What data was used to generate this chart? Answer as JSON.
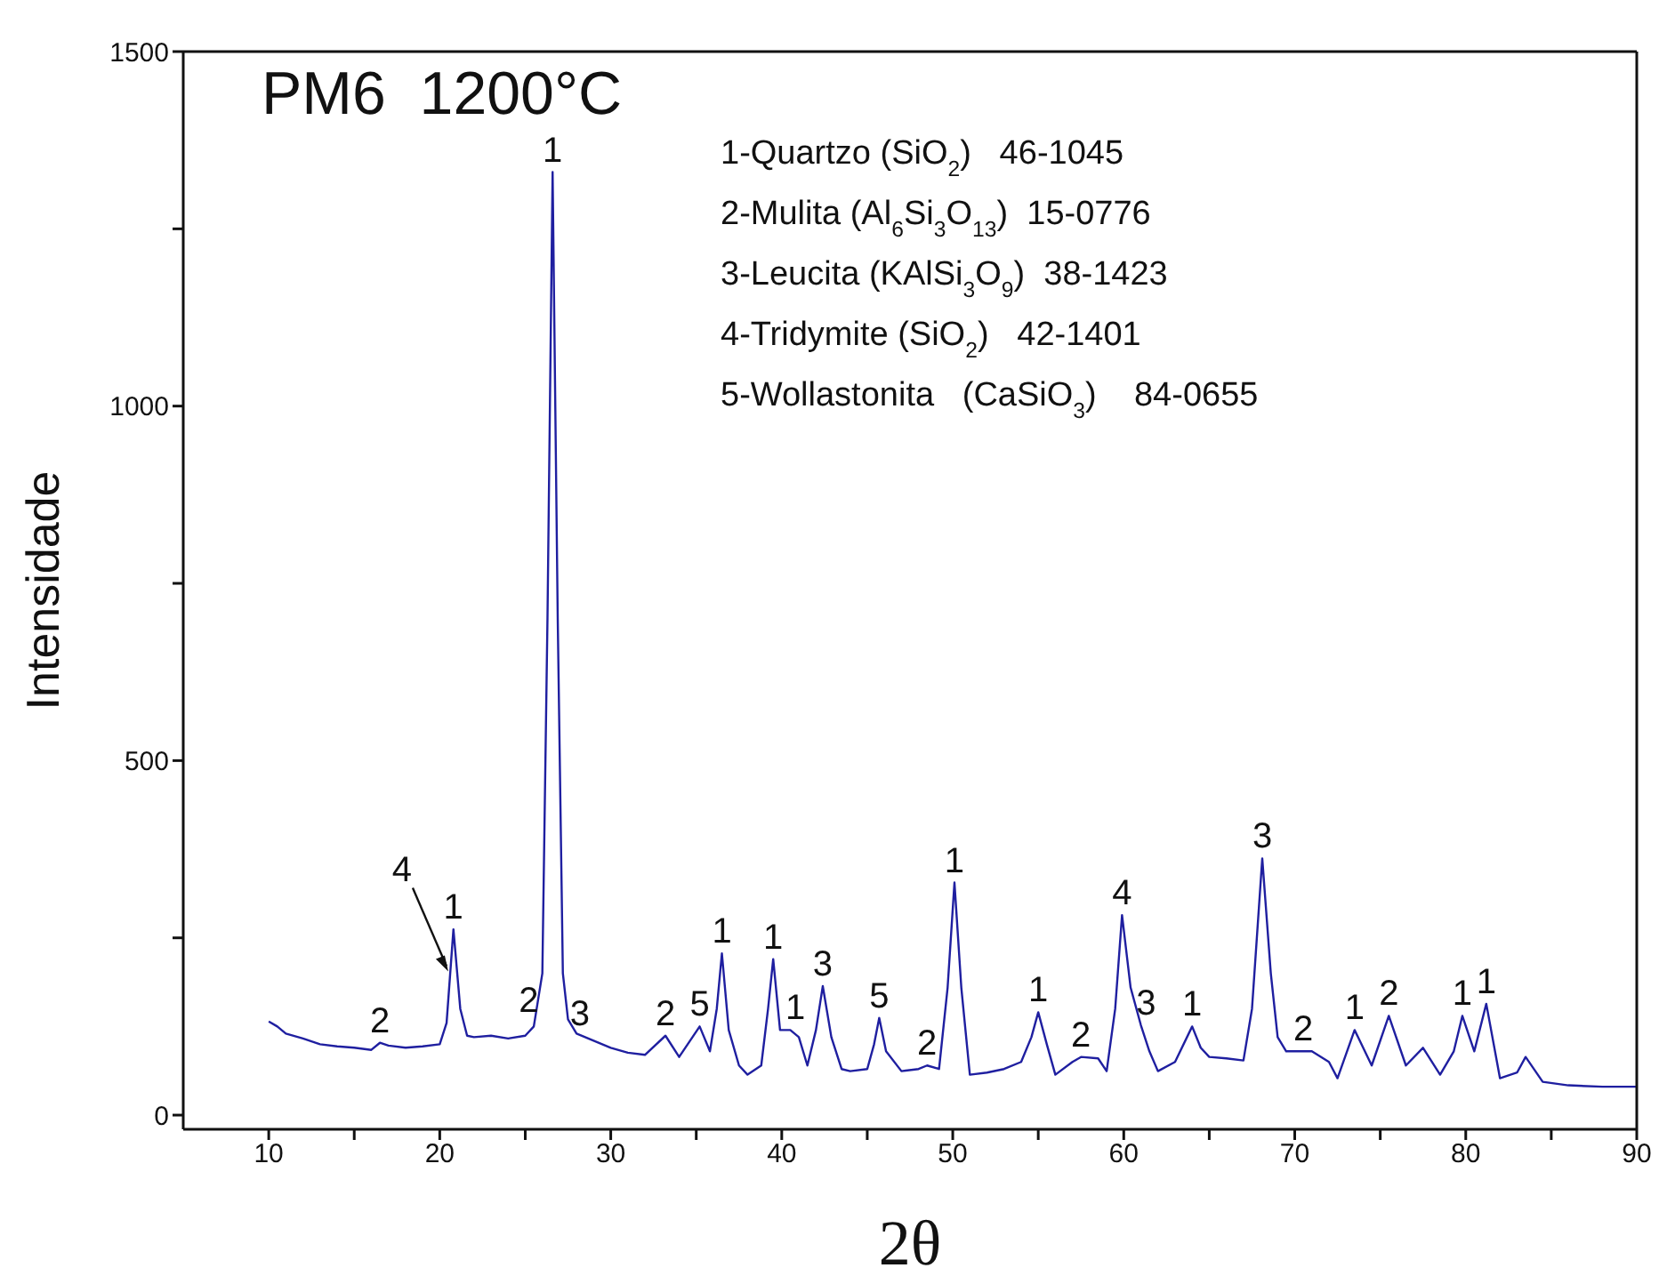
{
  "chart_data": {
    "type": "line",
    "title": "PM6  1200°C",
    "xlabel": "2θ",
    "ylabel": "Intensidade",
    "xlim": [
      5,
      90
    ],
    "xticks": [
      10,
      {
        "value": 15,
        "label": null
      },
      20,
      {
        "value": 25,
        "label": null
      },
      30,
      {
        "value": 35,
        "label": null
      },
      40,
      {
        "value": 45,
        "label": null
      },
      50,
      {
        "value": 55,
        "label": null
      },
      60,
      {
        "value": 65,
        "label": null
      },
      70,
      {
        "value": 75,
        "label": null
      },
      80,
      {
        "value": 85,
        "label": null
      },
      90
    ],
    "ylim": [
      -20,
      1500
    ],
    "yticks": [
      0,
      {
        "value": 250,
        "label": null
      },
      500,
      {
        "value": 750,
        "label": null
      },
      1000,
      {
        "value": 1250,
        "label": null
      },
      1500
    ],
    "marker": "none",
    "series": [
      {
        "color": "#1f1fa0",
        "x": [
          10,
          10.5,
          11,
          12,
          13,
          14,
          15,
          16,
          16.5,
          17,
          18,
          19,
          20,
          20.4,
          20.8,
          21.2,
          21.6,
          22,
          23,
          24,
          25,
          25.5,
          26,
          26.3,
          26.6,
          26.9,
          27.2,
          27.5,
          28,
          29,
          30,
          31,
          32,
          33.2,
          34,
          35.2,
          35.8,
          36.2,
          36.5,
          36.9,
          37.5,
          38,
          38.8,
          39.2,
          39.5,
          39.9,
          40.5,
          41,
          41.5,
          42,
          42.4,
          42.9,
          43.5,
          44,
          45,
          45.4,
          45.7,
          46.1,
          47,
          48,
          48.5,
          49.2,
          49.7,
          50.1,
          50.5,
          51,
          52,
          53,
          54,
          54.6,
          55,
          55.5,
          56,
          57,
          57.5,
          58.5,
          59,
          59.5,
          59.9,
          60.4,
          61,
          61.5,
          62,
          63,
          64,
          64.5,
          65,
          66,
          67,
          67.5,
          68.1,
          68.6,
          69,
          69.5,
          71,
          72,
          72.5,
          73.5,
          74.5,
          75.5,
          76.5,
          77.5,
          78.5,
          79.3,
          79.8,
          80.5,
          81.2,
          82,
          83,
          83.5,
          84.5,
          86,
          88,
          90
        ],
        "values": [
          132,
          125,
          115,
          108,
          100,
          97,
          95,
          92,
          102,
          98,
          95,
          97,
          100,
          130,
          262,
          150,
          112,
          110,
          112,
          108,
          112,
          125,
          200,
          700,
          1330,
          700,
          200,
          135,
          115,
          105,
          95,
          88,
          85,
          112,
          82,
          125,
          90,
          150,
          228,
          120,
          70,
          57,
          70,
          150,
          220,
          120,
          120,
          110,
          70,
          120,
          182,
          110,
          65,
          62,
          65,
          100,
          137,
          90,
          62,
          65,
          70,
          65,
          180,
          328,
          180,
          57,
          60,
          65,
          75,
          110,
          145,
          100,
          57,
          75,
          82,
          80,
          62,
          150,
          282,
          180,
          127,
          90,
          62,
          75,
          125,
          95,
          82,
          80,
          77,
          150,
          362,
          200,
          110,
          90,
          90,
          75,
          52,
          120,
          70,
          140,
          70,
          95,
          57,
          90,
          140,
          90,
          157,
          52,
          60,
          82,
          47,
          42,
          40,
          40
        ]
      }
    ],
    "annotations": [
      {
        "text": "2",
        "x": 16.5,
        "y": 102
      },
      {
        "text": "4",
        "x": 20.5,
        "y": 200
      },
      {
        "text": "1",
        "x": 20.8,
        "y": 262
      },
      {
        "text": "2",
        "x": 25.2,
        "y": 130
      },
      {
        "text": "1",
        "x": 26.6,
        "y": 1330
      },
      {
        "text": "3",
        "x": 28.2,
        "y": 112
      },
      {
        "text": "2",
        "x": 33.2,
        "y": 112
      },
      {
        "text": "5",
        "x": 35.2,
        "y": 125
      },
      {
        "text": "1",
        "x": 36.5,
        "y": 228
      },
      {
        "text": "1",
        "x": 39.5,
        "y": 220
      },
      {
        "text": "1",
        "x": 40.8,
        "y": 120
      },
      {
        "text": "3",
        "x": 42.4,
        "y": 182
      },
      {
        "text": "5",
        "x": 45.7,
        "y": 137
      },
      {
        "text": "2",
        "x": 48.5,
        "y": 70
      },
      {
        "text": "1",
        "x": 50.1,
        "y": 328
      },
      {
        "text": "1",
        "x": 55,
        "y": 145
      },
      {
        "text": "2",
        "x": 57.5,
        "y": 82
      },
      {
        "text": "4",
        "x": 59.9,
        "y": 282
      },
      {
        "text": "3",
        "x": 61.3,
        "y": 127
      },
      {
        "text": "1",
        "x": 64,
        "y": 125
      },
      {
        "text": "3",
        "x": 68.1,
        "y": 362
      },
      {
        "text": "2",
        "x": 70.5,
        "y": 90
      },
      {
        "text": "1",
        "x": 73.5,
        "y": 120
      },
      {
        "text": "2",
        "x": 75.5,
        "y": 140
      },
      {
        "text": "1",
        "x": 79.8,
        "y": 140
      },
      {
        "text": "1",
        "x": 81.2,
        "y": 157
      },
      "1-Quartzo (SiO$_{2}$)   46-1045",
      "2-Mulita (Al$_{6}$Si$_{3}$O$_{13}$)  15-0776",
      "3-Leucita (KAlSi$_{3}$O$_{9}$)  38-1423",
      "4-Tridymite (SiO$_{2}$)   42-1401",
      "5-Wollastonita   (CaSiO$_{3}$)    84-0655"
    ]
  }
}
